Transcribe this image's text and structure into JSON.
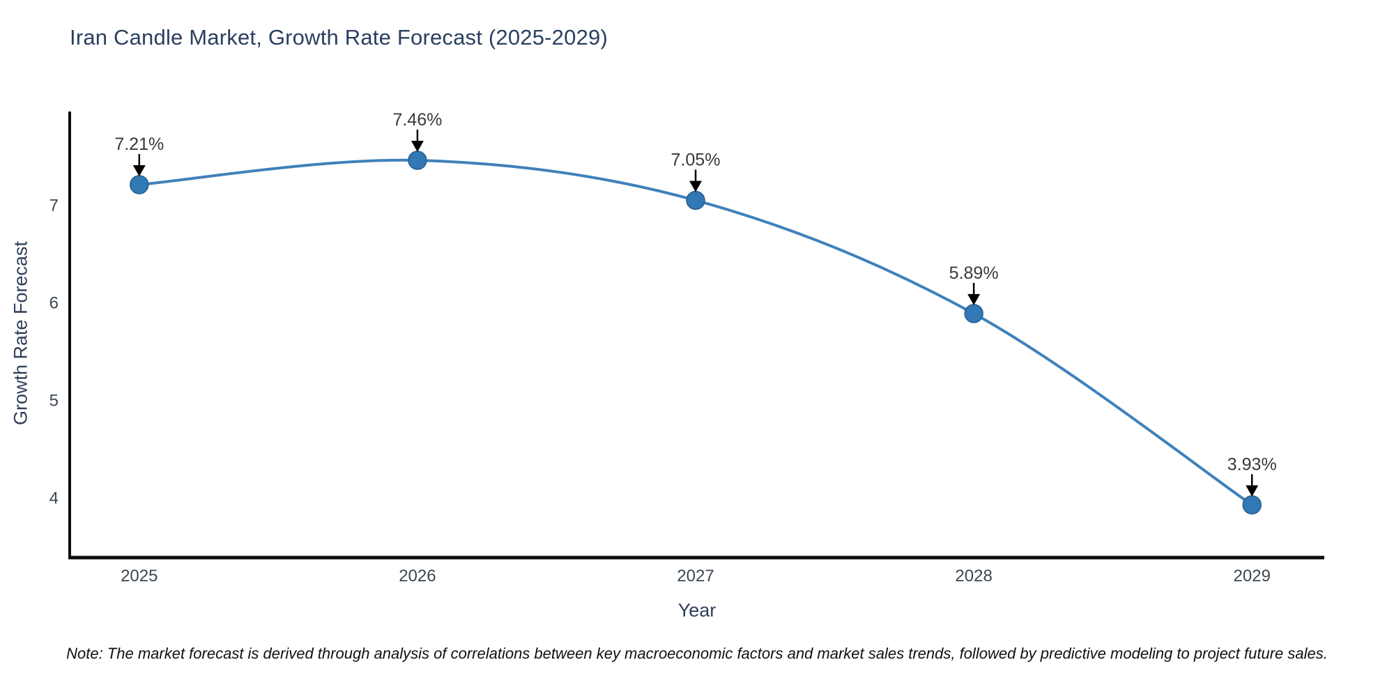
{
  "chart": {
    "title": "Iran Candle Market, Growth Rate Forecast (2025-2029)",
    "xlabel": "Year",
    "ylabel": "Growth Rate Forecast",
    "note": "Note: The market forecast is derived through analysis of correlations between key macroeconomic factors and market sales trends, followed by predictive modeling to project future sales."
  },
  "chart_data": {
    "type": "line",
    "curve": "spline",
    "title": "Iran Candle Market, Growth Rate Forecast (2025-2029)",
    "xlabel": "Year",
    "ylabel": "Growth Rate Forecast",
    "x": [
      2025,
      2026,
      2027,
      2028,
      2029
    ],
    "values": [
      7.21,
      7.46,
      7.05,
      5.89,
      3.93
    ],
    "point_labels": [
      "7.21%",
      "7.46%",
      "7.05%",
      "5.89%",
      "3.93%"
    ],
    "xticks": [
      2025,
      2026,
      2027,
      2028,
      2029
    ],
    "yticks": [
      4,
      5,
      6,
      7
    ],
    "xlim": [
      2024.75,
      2029.26
    ],
    "ylim": [
      3.39,
      7.96
    ],
    "grid": false,
    "legend": null,
    "annotations_have_arrows": true
  },
  "colors": {
    "line": "#3f81ba",
    "marker_fill": "#3178b5",
    "marker_edge": "#275e8e",
    "arrow": "#000000",
    "spine": "#0d0d0d",
    "title_text": "#2a3f5f",
    "background": "#ffffff"
  }
}
